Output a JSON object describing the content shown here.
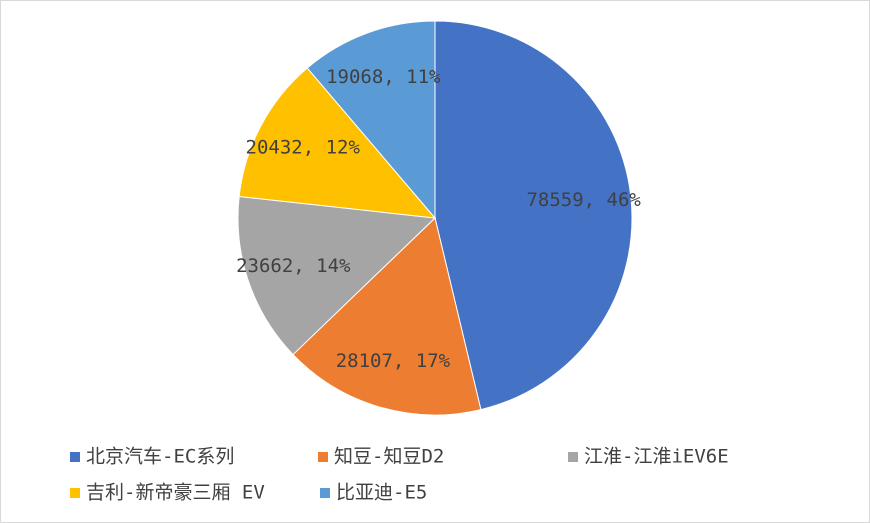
{
  "chart_data": {
    "type": "pie",
    "categories": [
      "北京汽车-EC系列",
      "知豆-知豆D2",
      "江淮-江淮iEV6E",
      "吉利-新帝豪三厢 EV",
      "比亚迪-E5"
    ],
    "values": [
      78559,
      28107,
      23662,
      20432,
      19068
    ],
    "value_labels": [
      "78559, 46%",
      "28107, 17%",
      "23662, 14%",
      "20432, 12%",
      "19068, 11%"
    ],
    "colors": [
      "#4472c4",
      "#ed7d31",
      "#a5a5a5",
      "#ffc000",
      "#5b9bd5"
    ],
    "legend": "bottom"
  }
}
